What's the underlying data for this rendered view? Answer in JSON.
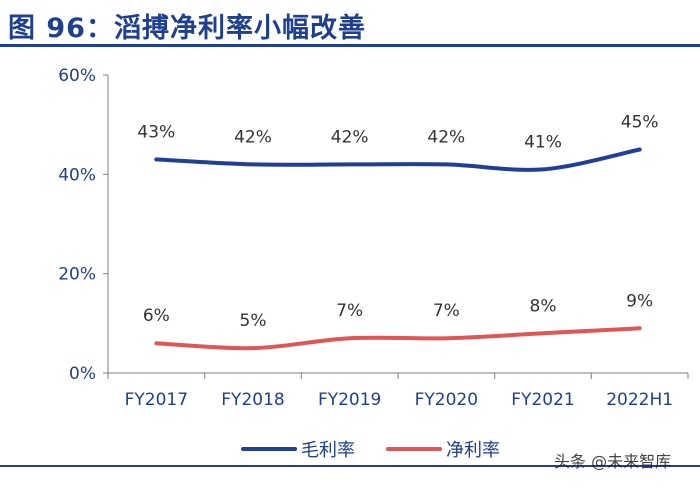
{
  "header": {
    "title": "图 96：滔搏净利率小幅改善"
  },
  "chart_data": {
    "type": "line",
    "categories": [
      "FY2017",
      "FY2018",
      "FY2019",
      "FY2020",
      "FY2021",
      "2022H1"
    ],
    "series": [
      {
        "name": "毛利率",
        "values": [
          43,
          42,
          42,
          42,
          41,
          45
        ],
        "labels": [
          "43%",
          "42%",
          "42%",
          "42%",
          "41%",
          "45%"
        ],
        "color": "#1f3f99"
      },
      {
        "name": "净利率",
        "values": [
          6,
          5,
          7,
          7,
          8,
          9
        ],
        "labels": [
          "6%",
          "5%",
          "7%",
          "7%",
          "8%",
          "9%"
        ],
        "color": "#e05555"
      }
    ],
    "yticks": [
      "0%",
      "20%",
      "40%",
      "60%"
    ],
    "ylim": [
      0,
      60
    ],
    "grid": false,
    "legend": "bottom-center",
    "title": "",
    "xlabel": "",
    "ylabel": ""
  },
  "watermark": "头条 @未来智库"
}
